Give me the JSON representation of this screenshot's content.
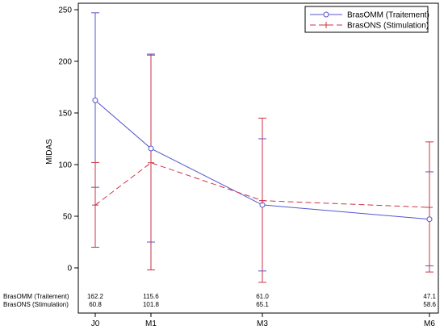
{
  "chart_data": {
    "type": "line",
    "title": "",
    "xlabel": "",
    "ylabel": "MIDAS",
    "categories": [
      "J0",
      "M1",
      "M3",
      "M6"
    ],
    "x_positions_months": [
      0,
      1,
      3,
      6
    ],
    "ylim": [
      -15,
      250
    ],
    "yticks": [
      0,
      50,
      100,
      150,
      200,
      250
    ],
    "grid": false,
    "legend_position": "top-right",
    "series": [
      {
        "name": "BrasOMM (Traitement)",
        "values": [
          162.2,
          115.6,
          61.0,
          47.1
        ],
        "upper": [
          247,
          207,
          125,
          93
        ],
        "lower": [
          78,
          25,
          -3,
          2
        ],
        "color": "#5555cc",
        "line_style": "solid",
        "marker": "circle"
      },
      {
        "name": "BrasONS (Stimulation)",
        "values": [
          60.8,
          101.8,
          65.1,
          58.6
        ],
        "upper": [
          102,
          206,
          145,
          122
        ],
        "lower": [
          20,
          -2,
          -14,
          -4
        ],
        "color": "#cc3344",
        "line_style": "dashed",
        "marker": "plus"
      }
    ],
    "table": {
      "row_labels": [
        "BrasOMM (Traitement)",
        "BrasONS (Stimulation)"
      ],
      "rows": [
        [
          "162.2",
          "115.6",
          "61.0",
          "47.1"
        ],
        [
          "60.8",
          "101.8",
          "65.1",
          "58.6"
        ]
      ]
    }
  }
}
